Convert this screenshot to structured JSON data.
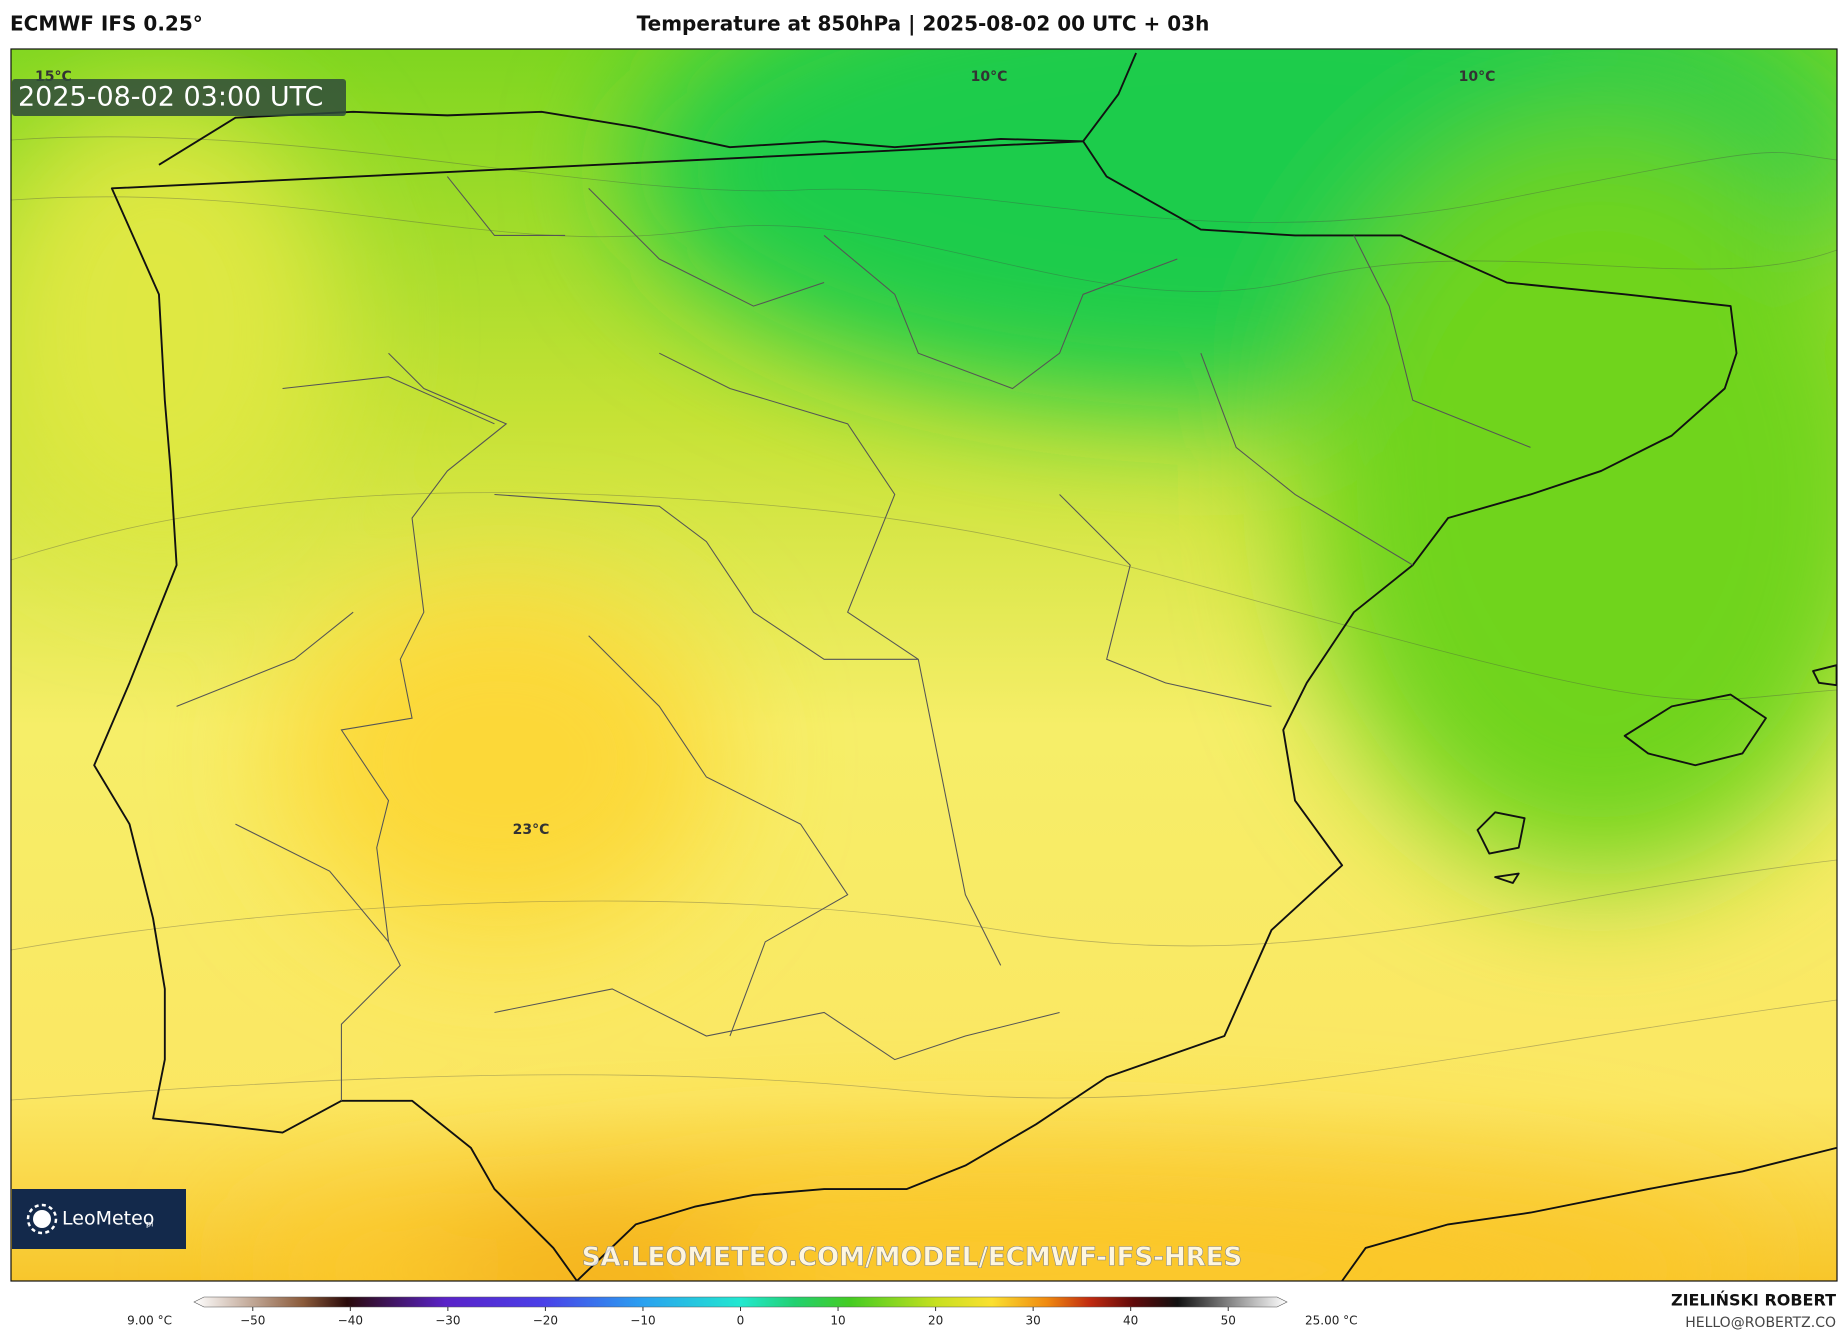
{
  "header": {
    "model": "ECMWF IFS 0.25°",
    "title": "Temperature at 850hPa | 2025-08-02 00 UTC + 03h"
  },
  "map": {
    "timestamp": "2025-08-02 03:00 UTC",
    "contour_labels": [
      "15°C",
      "10°C",
      "10°C",
      "23°C"
    ],
    "logo": "LeoMeteo",
    "logo_suffix": "pl",
    "watermark": "SA.LEOMETEO.COM/MODEL/ECMWF-IFS-HRES"
  },
  "colorbar": {
    "min_label": "9.00 °C",
    "max_label": "25.00 °C",
    "lim": [
      -55,
      55
    ],
    "ticks": [
      {
        "value": -50,
        "label": "−50"
      },
      {
        "value": -40,
        "label": "−40"
      },
      {
        "value": -30,
        "label": "−30"
      },
      {
        "value": -20,
        "label": "−20"
      },
      {
        "value": -10,
        "label": "−10"
      },
      0,
      10,
      20,
      30,
      40,
      50
    ]
  },
  "credits": {
    "author": "ZIELIŃSKI ROBERT",
    "email": "HELLO@ROBERTZ.CO"
  }
}
